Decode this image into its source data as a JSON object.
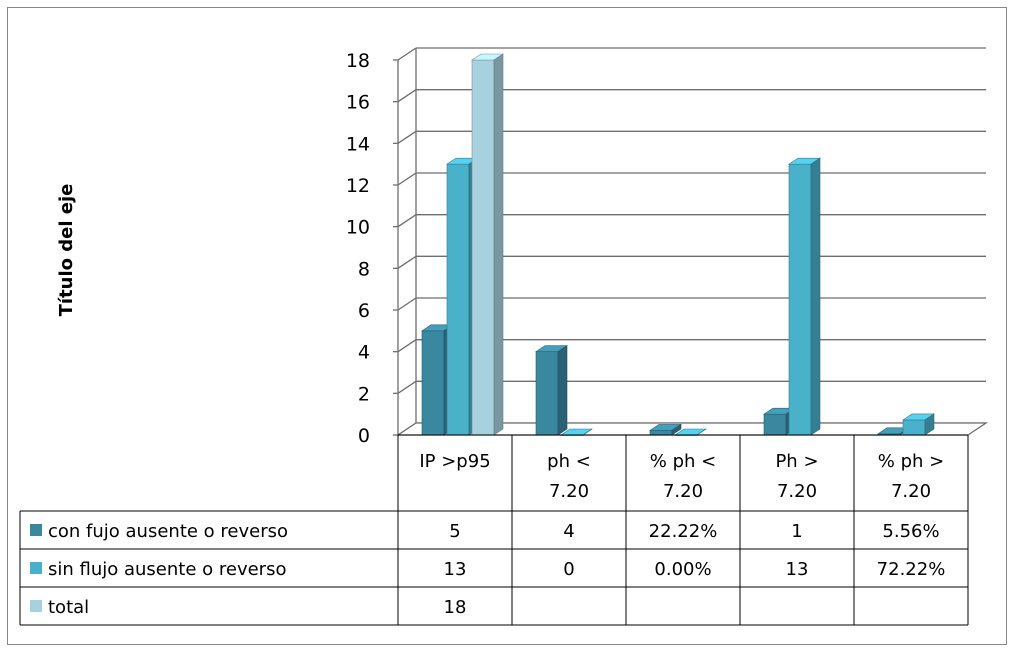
{
  "chart_data": {
    "type": "bar",
    "title": "",
    "ylabel": "Título del eje",
    "ylim": [
      0,
      18
    ],
    "yticks": [
      "0",
      "2",
      "4",
      "6",
      "8",
      "10",
      "12",
      "14",
      "16",
      "18"
    ],
    "categories": [
      [
        "IP >p95"
      ],
      [
        "ph <",
        "7.20"
      ],
      [
        "% ph <",
        "7.20"
      ],
      [
        "Ph >",
        "7.20"
      ],
      [
        "% ph >",
        "7.20"
      ]
    ],
    "series": [
      {
        "name": "con fujo ausente o reverso",
        "color": "#3a87a0",
        "values": [
          5,
          4,
          0.2222,
          1,
          0.0556
        ],
        "table_labels": [
          "5",
          "4",
          "22.22%",
          "1",
          "5.56%"
        ]
      },
      {
        "name": "sin flujo ausente o reverso",
        "color": "#4ab1cb",
        "values": [
          13,
          0,
          0,
          13,
          0.7222
        ],
        "table_labels": [
          "13",
          "0",
          "0.00%",
          "13",
          "72.22%"
        ]
      },
      {
        "name": "total",
        "color": "#a8d1df",
        "values": [
          18,
          null,
          null,
          null,
          null
        ],
        "table_labels": [
          "18",
          "",
          "",
          "",
          ""
        ]
      }
    ],
    "grid": true,
    "legend": "data-table"
  }
}
